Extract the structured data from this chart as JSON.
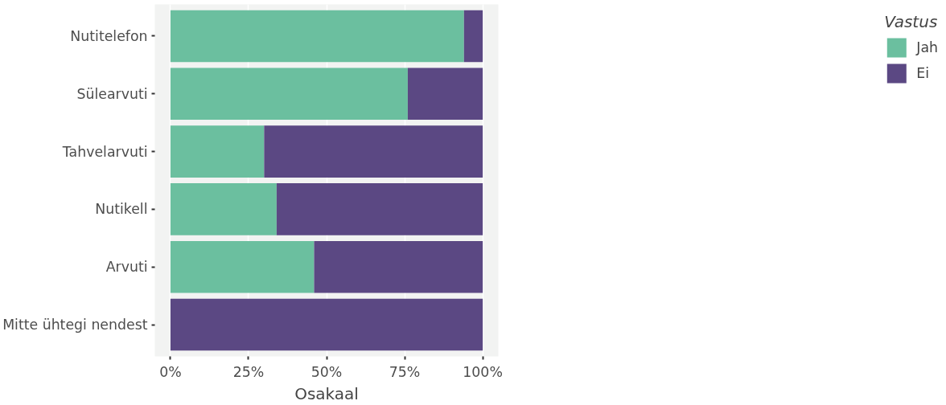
{
  "chart_data": {
    "type": "bar",
    "orientation": "horizontal",
    "stacked": true,
    "categories": [
      "Nutitelefon",
      "Sülearvuti",
      "Tahvelarvuti",
      "Nutikell",
      "Arvuti",
      "Mitte ühtegi nendest"
    ],
    "series": [
      {
        "name": "Jah",
        "color": "#6bbf9f",
        "values": [
          94,
          76,
          30,
          34,
          46,
          0
        ]
      },
      {
        "name": "Ei",
        "color": "#5b4883",
        "values": [
          6,
          24,
          70,
          66,
          54,
          100
        ]
      }
    ],
    "xlabel": "Osakaal",
    "legend_title": "Vastus",
    "legend": "right",
    "xlim": [
      -5,
      105
    ],
    "xticks": [
      {
        "value": 0,
        "label": "0%"
      },
      {
        "value": 25,
        "label": "25%"
      },
      {
        "value": 50,
        "label": "50%"
      },
      {
        "value": 75,
        "label": "75%"
      },
      {
        "value": 100,
        "label": "100%"
      }
    ],
    "grid": "x"
  }
}
